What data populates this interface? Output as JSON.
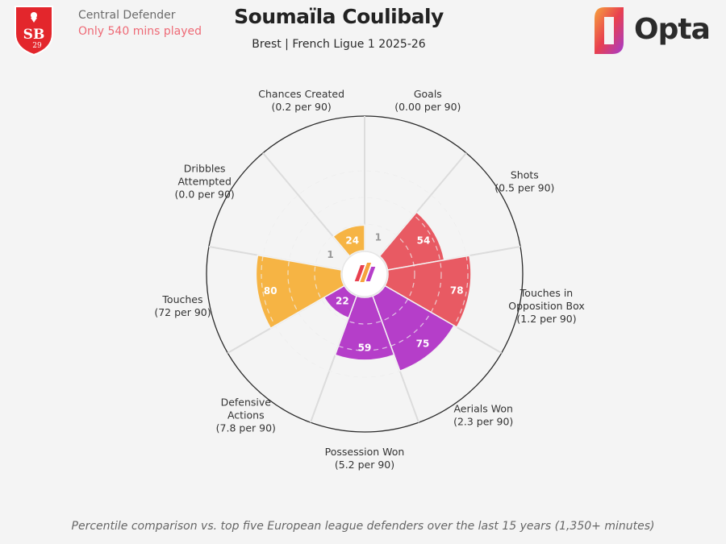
{
  "header": {
    "role": "Central Defender",
    "warning": "Only 540 mins played",
    "title": "Soumaïla Coulibaly",
    "subtitle": "Brest | French Ligue 1 2025-26",
    "opta_label": "Opta"
  },
  "footnote": "Percentile comparison vs. top five European league defenders over the last 15 years (1,350+ minutes)",
  "colors": {
    "attacking": "#e85a63",
    "defending": "#b53ec9",
    "possession": "#f6b444",
    "background": "#f4f4f4",
    "warning": "#ee6a76"
  },
  "chart_data": {
    "type": "polar_bar",
    "scale_max": 100,
    "zero_value_label": "1",
    "categories": [
      {
        "name": "Goals",
        "per90": "(0.00 per 90)",
        "percentile": 1,
        "group": "attacking"
      },
      {
        "name": "Shots",
        "per90": "(0.5 per 90)",
        "percentile": 54,
        "group": "attacking"
      },
      {
        "name": "Touches in\nOpposition Box",
        "per90": "(1.2 per 90)",
        "percentile": 78,
        "group": "attacking"
      },
      {
        "name": "Aerials Won",
        "per90": "(2.3 per 90)",
        "percentile": 75,
        "group": "defending"
      },
      {
        "name": "Possession Won",
        "per90": "(5.2 per 90)",
        "percentile": 59,
        "group": "defending"
      },
      {
        "name": "Defensive\nActions",
        "per90": "(7.8 per 90)",
        "percentile": 22,
        "group": "defending"
      },
      {
        "name": "Touches",
        "per90": "(72 per 90)",
        "percentile": 80,
        "group": "possession"
      },
      {
        "name": "Dribbles\nAttempted",
        "per90": "(0.0 per 90)",
        "percentile": 1,
        "group": "possession"
      },
      {
        "name": "Chances Created",
        "per90": "(0.2 per 90)",
        "percentile": 24,
        "group": "possession"
      }
    ]
  }
}
